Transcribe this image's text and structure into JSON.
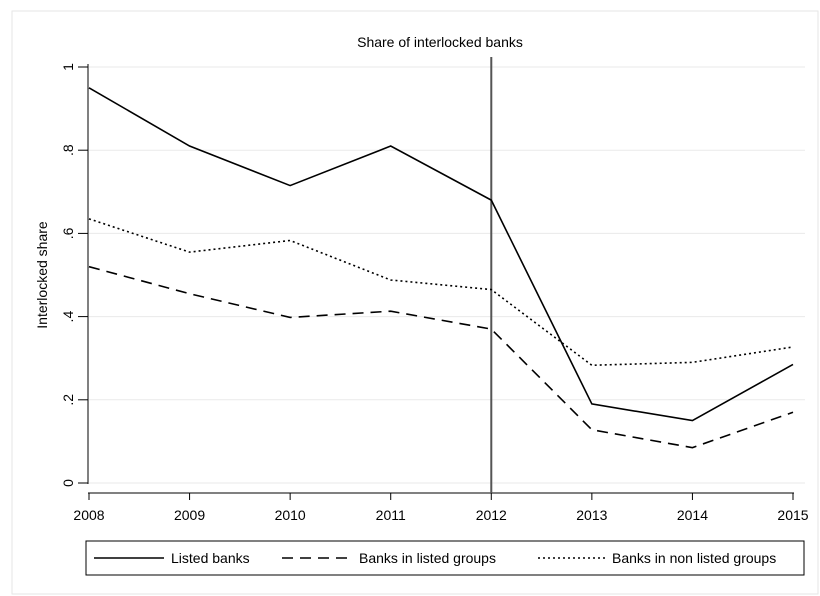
{
  "chart_data": {
    "type": "line",
    "title": "Share of interlocked banks",
    "xlabel": "",
    "ylabel": "Interlocked share",
    "x": [
      2008,
      2009,
      2010,
      2011,
      2012,
      2013,
      2014,
      2015
    ],
    "x_tick_labels": [
      "2008",
      "2009",
      "2010",
      "2011",
      "2012",
      "2013",
      "2014",
      "2015"
    ],
    "y_ticks": [
      0,
      0.2,
      0.4,
      0.6,
      0.8,
      1
    ],
    "y_tick_labels": [
      "0",
      ".2",
      ".4",
      ".6",
      ".8",
      "1"
    ],
    "ylim": [
      0,
      1
    ],
    "xlim": [
      2008,
      2015
    ],
    "grid": true,
    "vertical_reference_line_x": 2012,
    "legend_position": "bottom",
    "series": [
      {
        "name": "Listed banks",
        "style": "solid",
        "values": [
          0.95,
          0.81,
          0.715,
          0.81,
          0.68,
          0.19,
          0.15,
          0.285
        ]
      },
      {
        "name": "Banks in listed groups",
        "style": "dashed",
        "values": [
          0.52,
          0.455,
          0.398,
          0.413,
          0.37,
          0.128,
          0.085,
          0.17
        ]
      },
      {
        "name": "Banks in non listed groups",
        "style": "dotted",
        "values": [
          0.635,
          0.555,
          0.583,
          0.488,
          0.465,
          0.283,
          0.29,
          0.327
        ]
      }
    ]
  }
}
